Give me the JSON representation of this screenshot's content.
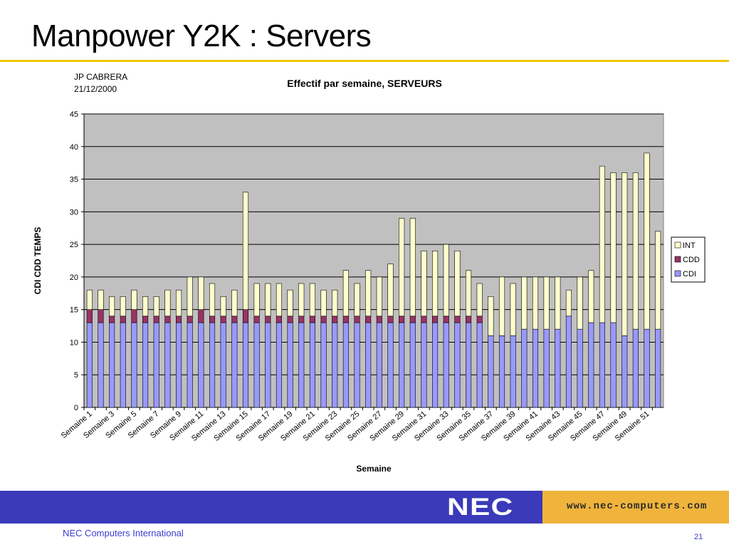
{
  "slide": {
    "title": "Manpower Y2K : Servers",
    "author": "JP CABRERA",
    "date": "21/12/2000",
    "company": "NEC Computers International",
    "page_number": "21",
    "logo_text": "NEC",
    "url": "www.nec-computers.com"
  },
  "colors": {
    "title_rule": "#f2c500",
    "footer_blue": "#3a3aba",
    "footer_orange": "#f0b43c",
    "plot_background": "#c0c0c0",
    "cdi": "#9999ff",
    "cdd": "#993366",
    "int": "#ffffcc"
  },
  "chart_data": {
    "type": "bar",
    "stacked": true,
    "title": "Effectif par semaine, SERVEURS",
    "xlabel": "Semaine",
    "ylabel": "CDI CDD TEMPS",
    "ylim": [
      0,
      45
    ],
    "yticks": [
      0,
      5,
      10,
      15,
      20,
      25,
      30,
      35,
      40,
      45
    ],
    "grid": true,
    "legend_position": "right",
    "categories": [
      "Semaine 1",
      "Semaine 2",
      "Semaine 3",
      "Semaine 4",
      "Semaine 5",
      "Semaine 6",
      "Semaine 7",
      "Semaine 8",
      "Semaine 9",
      "Semaine 10",
      "Semaine 11",
      "Semaine 12",
      "Semaine 13",
      "Semaine 14",
      "Semaine 15",
      "Semaine 16",
      "Semaine 17",
      "Semaine 18",
      "Semaine 19",
      "Semaine 20",
      "Semaine 21",
      "Semaine 22",
      "Semaine 23",
      "Semaine 24",
      "Semaine 25",
      "Semaine 26",
      "Semaine 27",
      "Semaine 28",
      "Semaine 29",
      "Semaine 30",
      "Semaine 31",
      "Semaine 32",
      "Semaine 33",
      "Semaine 34",
      "Semaine 35",
      "Semaine 36",
      "Semaine 37",
      "Semaine 38",
      "Semaine 39",
      "Semaine 40",
      "Semaine 41",
      "Semaine 42",
      "Semaine 43",
      "Semaine 44",
      "Semaine 45",
      "Semaine 46",
      "Semaine 47",
      "Semaine 48",
      "Semaine 49",
      "Semaine 50",
      "Semaine 51",
      "Semaine 52"
    ],
    "visible_x_labels": [
      "Semaine 1",
      "Semaine 3",
      "Semaine 5",
      "Semaine 7",
      "Semaine 9",
      "Semaine 11",
      "Semaine 13",
      "Semaine 15",
      "Semaine 17",
      "Semaine 19",
      "Semaine 21",
      "Semaine 23",
      "Semaine 25",
      "Semaine 27",
      "Semaine 29",
      "Semaine 31",
      "Semaine 33",
      "Semaine 35",
      "Semaine 37",
      "Semaine 39",
      "Semaine 41",
      "Semaine 43",
      "Semaine 45",
      "Semaine 47",
      "Semaine 49",
      "Semaine 51"
    ],
    "series": [
      {
        "name": "CDI",
        "color": "#9999ff",
        "values": [
          13,
          13,
          13,
          13,
          13,
          13,
          13,
          13,
          13,
          13,
          13,
          13,
          13,
          13,
          13,
          13,
          13,
          13,
          13,
          13,
          13,
          13,
          13,
          13,
          13,
          13,
          13,
          13,
          13,
          13,
          13,
          13,
          13,
          13,
          13,
          13,
          11,
          11,
          11,
          12,
          12,
          12,
          12,
          14,
          12,
          13,
          13,
          13,
          11,
          12,
          12,
          12
        ]
      },
      {
        "name": "CDD",
        "color": "#993366",
        "values": [
          2,
          2,
          1,
          1,
          2,
          1,
          1,
          1,
          1,
          1,
          2,
          1,
          1,
          1,
          2,
          1,
          1,
          1,
          1,
          1,
          1,
          1,
          1,
          1,
          1,
          1,
          1,
          1,
          1,
          1,
          1,
          1,
          1,
          1,
          1,
          1,
          0,
          0,
          0,
          0,
          0,
          0,
          0,
          0,
          0,
          0,
          0,
          0,
          0,
          0,
          0,
          0
        ]
      },
      {
        "name": "INT",
        "color": "#ffffcc",
        "values": [
          3,
          3,
          3,
          3,
          3,
          3,
          3,
          4,
          4,
          6,
          5,
          5,
          3,
          4,
          18,
          5,
          5,
          5,
          4,
          5,
          5,
          4,
          4,
          7,
          5,
          7,
          6,
          8,
          15,
          15,
          10,
          10,
          11,
          10,
          7,
          5,
          6,
          9,
          8,
          8,
          8,
          8,
          8,
          4,
          8,
          8,
          24,
          23,
          25,
          24,
          27,
          15
        ]
      }
    ],
    "legend_order": [
      "INT",
      "CDD",
      "CDI"
    ]
  }
}
